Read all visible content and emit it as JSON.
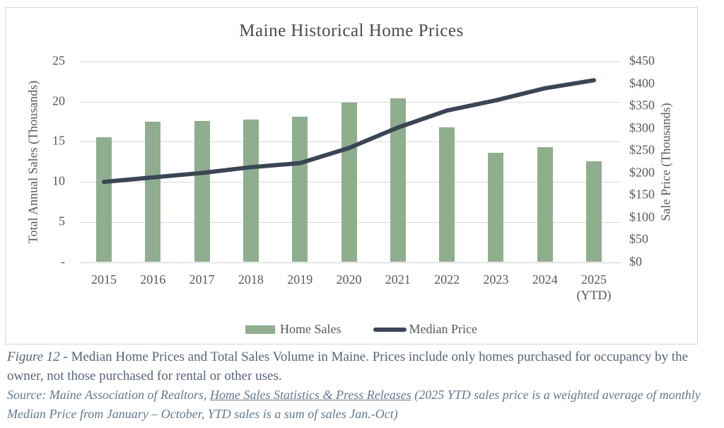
{
  "figure": {
    "caption": {
      "figure_label": "Figure 12",
      "body": " - Median Home Prices and Total Sales Volume in Maine. Prices include only homes purchased for occupancy by the owner, not those purchased for rental or other uses.",
      "source_prefix": "Source: Maine Association of Realtors, ",
      "source_link": "Home Sales Statistics & Press Releases",
      "source_suffix": " (2025 YTD sales price is a weighted average of monthly Median Price from January – October, YTD sales is a sum of sales Jan.-Oct)"
    }
  },
  "colors": {
    "bar": "#8fae8d",
    "line": "#3a4656",
    "grid": "#d9d9d9",
    "tick_text": "#595959",
    "title_text": "#474b52",
    "border": "#d9d9d9"
  },
  "chart_data": {
    "type": "bar+line",
    "title": "Maine Historical Home Prices",
    "categories": [
      "2015",
      "2016",
      "2017",
      "2018",
      "2019",
      "2020",
      "2021",
      "2022",
      "2023",
      "2024",
      "2025\n(YTD)"
    ],
    "series": [
      {
        "name": "Home Sales",
        "type": "bar",
        "axis": "left",
        "units": "thousands of sales",
        "values": [
          15.6,
          17.5,
          17.6,
          17.8,
          18.1,
          19.9,
          20.4,
          16.8,
          13.6,
          14.3,
          12.6
        ]
      },
      {
        "name": "Median Price",
        "type": "line",
        "axis": "right",
        "units": "USD thousands",
        "values": [
          180,
          190,
          200,
          213,
          222,
          256,
          302,
          340,
          363,
          390,
          408
        ]
      }
    ],
    "left_axis": {
      "title": "Total Annual Sales (Thousands)",
      "min": 0,
      "max": 25,
      "tick_values": [
        25,
        20,
        15,
        10,
        5,
        0
      ],
      "tick_labels": [
        "25",
        "20",
        "15",
        "10",
        "5",
        "-"
      ]
    },
    "right_axis": {
      "title": "Sale Price (Thousands)",
      "min": 0,
      "max": 450,
      "tick_values": [
        450,
        400,
        350,
        300,
        250,
        200,
        150,
        100,
        50,
        0
      ],
      "tick_labels": [
        "$450",
        "$400",
        "$350",
        "$300",
        "$250",
        "$200",
        "$150",
        "$100",
        "$50",
        "$0"
      ]
    },
    "grid": true,
    "legend_position": "bottom"
  }
}
